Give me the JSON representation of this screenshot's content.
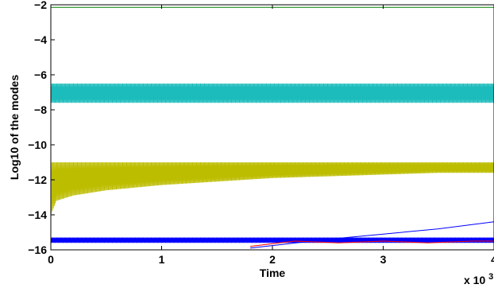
{
  "chart_data": {
    "type": "line",
    "title": "",
    "xlabel": "Time",
    "ylabel": "Log10 of the modes",
    "x_multiplier_label": "x 10",
    "x_multiplier_exponent": "3",
    "xlim": [
      0,
      4
    ],
    "ylim": [
      -16,
      -2
    ],
    "x_ticks": [
      "0",
      "1",
      "2",
      "3",
      "4"
    ],
    "y_ticks": [
      "-16",
      "-14",
      "-12",
      "-10",
      "-8",
      "-6",
      "-4",
      "-2"
    ],
    "grid": false,
    "legend": "none",
    "series": [
      {
        "color": "#1cbcbc",
        "style": "oscillating band",
        "x": [
          0,
          0.15,
          0.5,
          1,
          1.5,
          2,
          2.5,
          3,
          3.5,
          4
        ],
        "upper": [
          -6.5,
          -6.5,
          -6.5,
          -6.5,
          -6.5,
          -6.5,
          -6.5,
          -6.5,
          -6.5,
          -6.5
        ],
        "lower": [
          -7.6,
          -7.6,
          -7.6,
          -7.6,
          -7.6,
          -7.6,
          -7.6,
          -7.6,
          -7.6,
          -7.6
        ]
      },
      {
        "color": "#bdbd00",
        "style": "oscillating band",
        "x": [
          0,
          0.05,
          0.2,
          0.5,
          1,
          1.5,
          2,
          2.5,
          3,
          3.5,
          4
        ],
        "upper": [
          -11.0,
          -11.0,
          -11.0,
          -11.0,
          -11.0,
          -11.0,
          -11.0,
          -11.0,
          -11.0,
          -11.0,
          -11.0
        ],
        "lower": [
          -14.0,
          -13.2,
          -12.9,
          -12.6,
          -12.3,
          -12.1,
          -11.9,
          -11.8,
          -11.7,
          -11.6,
          -11.6
        ]
      },
      {
        "color": "#0000ff",
        "style": "oscillating band",
        "x": [
          0,
          1,
          2,
          3,
          4
        ],
        "upper": [
          -15.3,
          -15.3,
          -15.3,
          -15.3,
          -15.3
        ],
        "lower": [
          -15.6,
          -15.6,
          -15.6,
          -15.6,
          -15.6
        ]
      },
      {
        "color": "#0000ff",
        "style": "line",
        "x": [
          1.8,
          2.5,
          3,
          3.5,
          4
        ],
        "y": [
          -15.9,
          -15.4,
          -15.1,
          -14.8,
          -14.4
        ]
      },
      {
        "color": "#ff0000",
        "style": "line",
        "x": [
          1.8,
          2.2,
          2.6,
          3,
          3.4,
          3.8,
          4
        ],
        "y": [
          -15.8,
          -15.5,
          -15.6,
          -15.5,
          -15.6,
          -15.5,
          -15.5
        ]
      },
      {
        "color": "#008000",
        "style": "line",
        "x": [
          0,
          4
        ],
        "y": [
          -2.15,
          -2.15
        ]
      }
    ]
  }
}
